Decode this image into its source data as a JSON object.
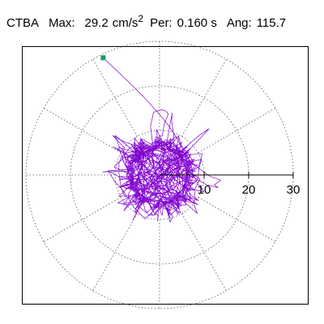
{
  "header": {
    "station": "CTBA",
    "max_label": "Max:",
    "max_value": "29.2",
    "max_unit": "cm/s",
    "max_exponent": "2",
    "per_label": "Per:",
    "per_value": "0.160 s",
    "ang_label": "Ang:",
    "ang_value": "115.7"
  },
  "chart_data": {
    "type": "scatter",
    "coordinate_system": "polar",
    "title": "",
    "xlabel": "",
    "ylabel": "",
    "radial_ticks": [
      10,
      20,
      30
    ],
    "radial_tick_labels": [
      "10",
      "20",
      "30"
    ],
    "rmax": 30,
    "grid": true,
    "grid_rings": [
      10,
      20,
      30
    ],
    "grid_spokes_deg": [
      0,
      30,
      60,
      90,
      120,
      150,
      180,
      210,
      240,
      270,
      300,
      330
    ],
    "series": [
      {
        "trace_color": "#8000d0",
        "peak_point": {
          "angle_deg": 115.7,
          "radius": 29.2
        },
        "peak_marker_color": "#1a9a7a"
      }
    ]
  }
}
